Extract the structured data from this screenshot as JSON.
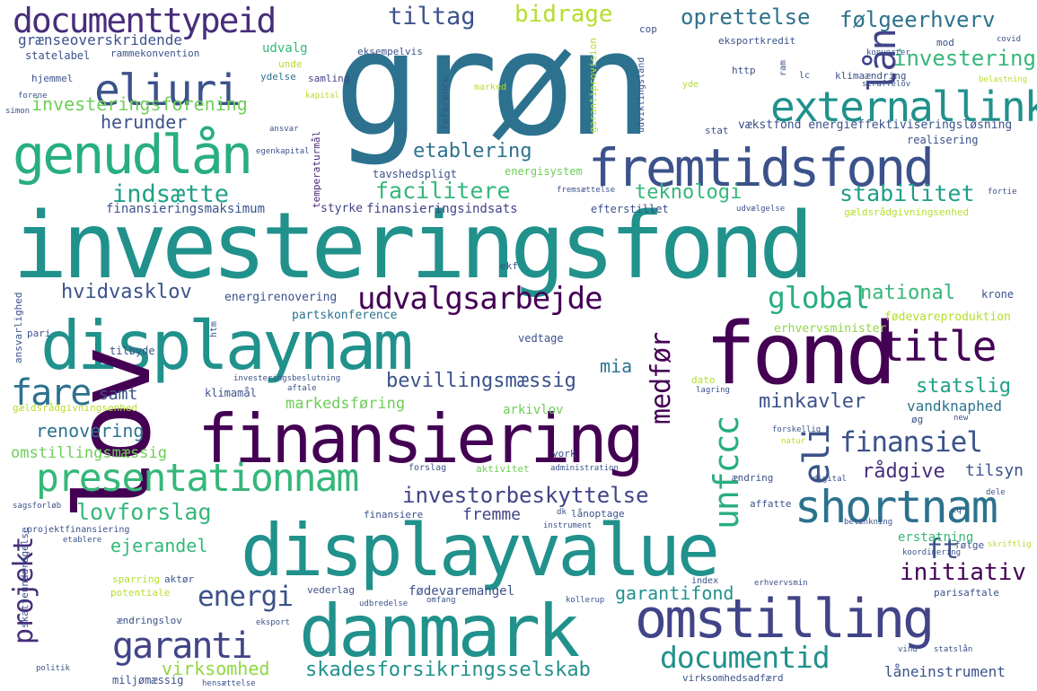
{
  "words": [
    {
      "text": "grøn",
      "color": "#2c728e"
    },
    {
      "text": "investeringsfond",
      "color": "#21918c"
    },
    {
      "text": "fremtidsfond",
      "color": "#3b528b"
    },
    {
      "text": "genudlån",
      "color": "#28ae80"
    },
    {
      "text": "displaynam",
      "color": "#21918c"
    },
    {
      "text": "finansiering",
      "color": "#440154"
    },
    {
      "text": "displayvalue",
      "color": "#21918c"
    },
    {
      "text": "danmark",
      "color": "#21918c"
    },
    {
      "text": "omstilling",
      "color": "#414487"
    },
    {
      "text": "fond",
      "color": "#440154"
    },
    {
      "text": "lov",
      "color": "#440154"
    },
    {
      "text": "externallink",
      "color": "#21918c"
    },
    {
      "text": "documenttypeid",
      "color": "#472d7b"
    },
    {
      "text": "eliuri",
      "color": "#3b528b"
    },
    {
      "text": "presentationnam",
      "color": "#35b779"
    },
    {
      "text": "shortnam",
      "color": "#2c728e"
    },
    {
      "text": "title",
      "color": "#440154"
    },
    {
      "text": "documentid",
      "color": "#21918c"
    },
    {
      "text": "udvalgsarbejde",
      "color": "#440154"
    },
    {
      "text": "lån",
      "color": "#414487"
    },
    {
      "text": "unfccc",
      "color": "#28ae80"
    },
    {
      "text": "eli",
      "color": "#3b528b"
    },
    {
      "text": "fare",
      "color": "#2c728e"
    },
    {
      "text": "garanti",
      "color": "#414487"
    },
    {
      "text": "projekt",
      "color": "#472d7b"
    },
    {
      "text": "energi",
      "color": "#3b528b"
    },
    {
      "text": "global",
      "color": "#28ae80"
    },
    {
      "text": "finansiel",
      "color": "#3b528b"
    },
    {
      "text": "medfør",
      "color": "#440154"
    },
    {
      "text": "initiativ",
      "color": "#440154"
    },
    {
      "text": "ft",
      "color": "#3b528b"
    },
    {
      "text": "investorbeskyttelse",
      "color": "#414487"
    },
    {
      "text": "skadesforsikringsselskab",
      "color": "#21918c"
    },
    {
      "text": "facilitere",
      "color": "#35b779"
    },
    {
      "text": "indsætte",
      "color": "#1fa187"
    },
    {
      "text": "stabilitet",
      "color": "#1f9e89"
    },
    {
      "text": "tiltag",
      "color": "#3b528b"
    },
    {
      "text": "bidrage",
      "color": "#b5de2b"
    },
    {
      "text": "oprettelse",
      "color": "#2c728e"
    },
    {
      "text": "følgeerhverv",
      "color": "#2c728e"
    },
    {
      "text": "investering",
      "color": "#35b779"
    },
    {
      "text": "etablering",
      "color": "#2c728e"
    },
    {
      "text": "teknologi",
      "color": "#35b779"
    },
    {
      "text": "herunder",
      "color": "#3b528b"
    },
    {
      "text": "investeringsforening",
      "color": "#6ece58"
    },
    {
      "text": "grænseoverskridende",
      "color": "#3b528b"
    },
    {
      "text": "hvidvasklov",
      "color": "#3b528b"
    },
    {
      "text": "national",
      "color": "#35b779"
    },
    {
      "text": "minkavler",
      "color": "#3b528b"
    },
    {
      "text": "statslig",
      "color": "#1fa187"
    },
    {
      "text": "bevillingsmæssig",
      "color": "#3b528b"
    },
    {
      "text": "mia",
      "color": "#2c728e"
    },
    {
      "text": "samt",
      "color": "#3b528b"
    },
    {
      "text": "markedsføring",
      "color": "#6ece58"
    },
    {
      "text": "vandknaphed",
      "color": "#2c728e"
    },
    {
      "text": "renovering",
      "color": "#2c728e"
    },
    {
      "text": "omstillingsmæssig",
      "color": "#6ece58"
    },
    {
      "text": "rådgive",
      "color": "#472d7b"
    },
    {
      "text": "tilsyn",
      "color": "#3b528b"
    },
    {
      "text": "lovforslag",
      "color": "#35b779"
    },
    {
      "text": "fremme",
      "color": "#414487"
    },
    {
      "text": "ejerandel",
      "color": "#35b779"
    },
    {
      "text": "virksomhed",
      "color": "#90d743"
    },
    {
      "text": "garantifond",
      "color": "#21918c"
    },
    {
      "text": "låneinstrument",
      "color": "#3b528b"
    },
    {
      "text": "finansieringsmaksimum",
      "color": "#3b528b"
    },
    {
      "text": "finansieringsindsats",
      "color": "#414487"
    },
    {
      "text": "energisystem",
      "color": "#6ece58"
    },
    {
      "text": "temperaturmål",
      "color": "#482878"
    },
    {
      "text": "energirenovering",
      "color": "#3b528b"
    },
    {
      "text": "partskonference",
      "color": "#2c728e"
    },
    {
      "text": "vedtage",
      "color": "#3b528b"
    },
    {
      "text": "erhvervsminister",
      "color": "#90d743"
    },
    {
      "text": "fødevareproduktion",
      "color": "#b5de2b"
    },
    {
      "text": "krone",
      "color": "#3b528b"
    },
    {
      "text": "statelabel",
      "color": "#3b528b"
    },
    {
      "text": "rammekonvention",
      "color": "#3b528b"
    },
    {
      "text": "hjemmel",
      "color": "#3b528b"
    },
    {
      "text": "ydelse",
      "color": "#2c728e"
    },
    {
      "text": "samling",
      "color": "#414487"
    },
    {
      "text": "udvalg",
      "color": "#35b779"
    },
    {
      "text": "unde",
      "color": "#b5de2b"
    },
    {
      "text": "eksempelvis",
      "color": "#3b528b"
    },
    {
      "text": "cop",
      "color": "#3b528b"
    },
    {
      "text": "eksportkredit",
      "color": "#3b528b"
    },
    {
      "text": "mod",
      "color": "#3b528b"
    },
    {
      "text": "http",
      "color": "#3b528b"
    },
    {
      "text": "ram",
      "color": "#3b528b"
    },
    {
      "text": "lc",
      "color": "#3b528b"
    },
    {
      "text": "klimaændring",
      "color": "#3b528b"
    },
    {
      "text": "reference",
      "color": "#3b528b"
    },
    {
      "text": "garantiprovision",
      "color": "#b5de2b"
    },
    {
      "text": "udviklingsland",
      "color": "#3b528b"
    },
    {
      "text": "marked",
      "color": "#b5de2b"
    },
    {
      "text": "yde",
      "color": "#b5de2b"
    },
    {
      "text": "vækstfond energieffektiviseringsløsning",
      "color": "#3b528b"
    },
    {
      "text": "stat",
      "color": "#3b528b"
    },
    {
      "text": "realisering",
      "color": "#3b528b"
    },
    {
      "text": "tavshedspligt",
      "color": "#3b528b"
    },
    {
      "text": "styrke",
      "color": "#414487"
    },
    {
      "text": "efterstillet",
      "color": "#3b528b"
    },
    {
      "text": "udvælgelse",
      "color": "#3b528b"
    },
    {
      "text": "gældsrådgivningsenhed",
      "color": "#b5de2b"
    },
    {
      "text": "gældsrådgivningsenhed",
      "color": "#b5de2b"
    },
    {
      "text": "ekf",
      "color": "#3b528b"
    },
    {
      "text": "forene",
      "color": "#3b528b"
    },
    {
      "text": "simon",
      "color": "#3b528b"
    },
    {
      "text": "egenkapital",
      "color": "#3b528b"
    },
    {
      "text": "ansvar",
      "color": "#3b528b"
    },
    {
      "text": "kapital",
      "color": "#b5de2b"
    },
    {
      "text": "covid",
      "color": "#3b528b"
    },
    {
      "text": "konverter",
      "color": "#3b528b"
    },
    {
      "text": "belastning",
      "color": "#b5de2b"
    },
    {
      "text": "straffelov",
      "color": "#3b528b"
    },
    {
      "text": "fremsættelse",
      "color": "#3b528b"
    },
    {
      "text": "fortie",
      "color": "#3b528b"
    },
    {
      "text": "ansvarlighed",
      "color": "#3b528b"
    },
    {
      "text": "pari",
      "color": "#3b528b"
    },
    {
      "text": "tilbyde",
      "color": "#3b528b"
    },
    {
      "text": "klimamål",
      "color": "#3b528b"
    },
    {
      "text": "htm",
      "color": "#3b528b"
    },
    {
      "text": "investeringsbeslutning",
      "color": "#3b528b"
    },
    {
      "text": "aftale",
      "color": "#3b528b"
    },
    {
      "text": "dato",
      "color": "#b5de2b"
    },
    {
      "text": "lagring",
      "color": "#3b528b"
    },
    {
      "text": "arkivlov",
      "color": "#6ece58"
    },
    {
      "text": "øg",
      "color": "#3b528b"
    },
    {
      "text": "new",
      "color": "#3b528b"
    },
    {
      "text": "york",
      "color": "#3b528b"
    },
    {
      "text": "forslag",
      "color": "#3b528b"
    },
    {
      "text": "aktivitet",
      "color": "#6ece58"
    },
    {
      "text": "administration",
      "color": "#3b528b"
    },
    {
      "text": "forskellig",
      "color": "#3b528b"
    },
    {
      "text": "natur",
      "color": "#b5de2b"
    },
    {
      "text": "digital",
      "color": "#3b528b"
    },
    {
      "text": "ændring",
      "color": "#3b528b"
    },
    {
      "text": "affatte",
      "color": "#3b528b"
    },
    {
      "text": "dele",
      "color": "#3b528b"
    },
    {
      "text": "finansiere",
      "color": "#3b528b"
    },
    {
      "text": "lånoptage",
      "color": "#3b528b"
    },
    {
      "text": "instrument",
      "color": "#3b528b"
    },
    {
      "text": "projektfinansiering",
      "color": "#3b528b"
    },
    {
      "text": "sparring",
      "color": "#b5de2b"
    },
    {
      "text": "aktør",
      "color": "#3b528b"
    },
    {
      "text": "potentiale",
      "color": "#b5de2b"
    },
    {
      "text": "ændringslov",
      "color": "#3b528b"
    },
    {
      "text": "vederlag",
      "color": "#3b528b"
    },
    {
      "text": "fødevaremangel",
      "color": "#3b528b"
    },
    {
      "text": "index",
      "color": "#3b528b"
    },
    {
      "text": "erhvervsmin",
      "color": "#3b528b"
    },
    {
      "text": "omfang",
      "color": "#3b528b"
    },
    {
      "text": "udbredelse",
      "color": "#3b528b"
    },
    {
      "text": "kollerup",
      "color": "#3b528b"
    },
    {
      "text": "erstatning",
      "color": "#35b779"
    },
    {
      "text": "følge",
      "color": "#3b528b"
    },
    {
      "text": "skriftlig",
      "color": "#b5de2b"
    },
    {
      "text": "koordinering",
      "color": "#3b528b"
    },
    {
      "text": "parisaftale",
      "color": "#3b528b"
    },
    {
      "text": "eksport",
      "color": "#3b528b"
    },
    {
      "text": "miljømæssig",
      "color": "#3b528b"
    },
    {
      "text": "politik",
      "color": "#3b528b"
    },
    {
      "text": "hensættelse",
      "color": "#3b528b"
    },
    {
      "text": "vind",
      "color": "#3b528b"
    },
    {
      "text": "statslån",
      "color": "#3b528b"
    },
    {
      "text": "virksomhedsadfærd",
      "color": "#3b528b"
    },
    {
      "text": "skatteunddragelse",
      "color": "#3b528b"
    },
    {
      "text": "sagsforløb",
      "color": "#3b528b"
    },
    {
      "text": "etablere",
      "color": "#3b528b"
    },
    {
      "text": "betænkning",
      "color": "#3b528b"
    },
    {
      "text": "dk",
      "color": "#3b528b"
    },
    {
      "text": "cq",
      "color": "#3b528b"
    }
  ]
}
